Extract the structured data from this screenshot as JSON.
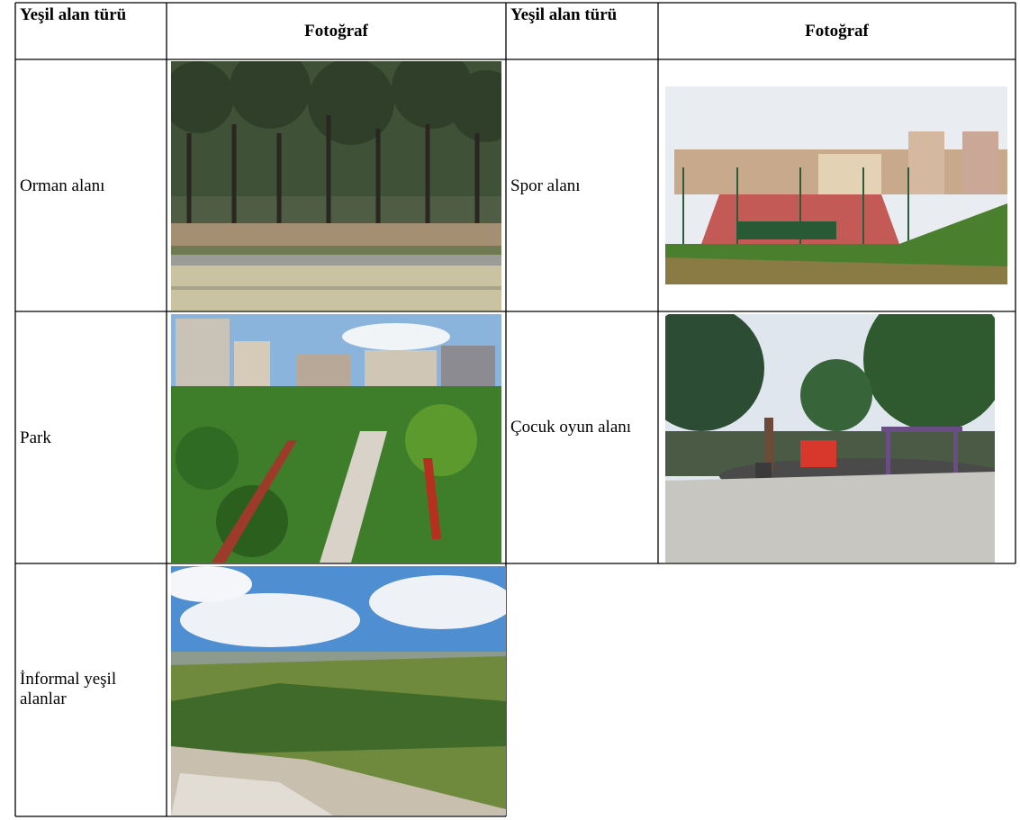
{
  "table": {
    "header": [
      "Yeşil alan türü",
      "Fotoğraf",
      "Yeşil alan türü",
      "Fotoğraf"
    ],
    "rows": [
      [
        "Orman alanı",
        "Spor alanı"
      ],
      [
        "Park",
        "Çocuk oyun alanı"
      ],
      [
        "İnformal yeşil alanlar"
      ]
    ]
  }
}
